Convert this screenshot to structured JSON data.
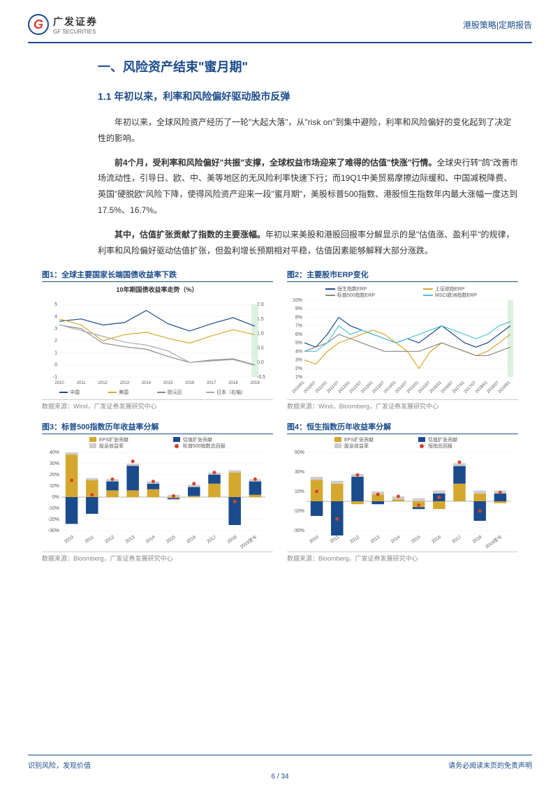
{
  "header": {
    "logo_cn": "广发证券",
    "logo_en": "GF SECURITIES",
    "logo_letter": "G",
    "right_text": "港股策略|定期报告"
  },
  "section": {
    "title": "一、风险资产结束\"蜜月期\"",
    "subsection": "1.1 年初以来，利率和风险偏好驱动股市反弹"
  },
  "paragraphs": {
    "p1": "年初以来，全球风险资产经历了一轮\"大起大落\"，从\"risk on\"到集中避险，利率和风险偏好的变化起到了决定性的影响。",
    "p2_bold": "前4个月，受利率和风险偏好\"共振\"支撑，全球权益市场迎来了难得的估值\"快涨\"行情。",
    "p2_rest": "全球央行转\"鸽\"改善市场流动性，引导日、欧、中、美等地区的无风险利率快速下行；而19Q1中美贸易摩擦边际缓和、中国减税降费、英国\"硬脱欧\"风险下降，使得风险资产迎来一段\"蜜月期\"，美股标普500指数、港股恒生指数年内最大涨幅一度达到17.5%、16.7%。",
    "p3_bold": "其中，估值扩张贡献了指数的主要涨幅。",
    "p3_rest": "年初以来美股和港股回报率分解显示的是\"估值涨、盈利平\"的规律，利率和风险偏好驱动估值扩张，但盈利增长预期相对平稳，估值因素能够解释大部分涨跌。"
  },
  "chart1": {
    "title": "图1：全球主要国家长端国债收益率下跌",
    "subtitle": "10年期国债收益率走势（%）",
    "source": "数据来源：Wind，广发证券发展研究中心",
    "legend": [
      "中国",
      "美国",
      "欧元区",
      "日本（右轴）"
    ],
    "colors": [
      "#1a4b8c",
      "#d4a82e",
      "#888888",
      "#aaaaaa"
    ],
    "x_labels": [
      "2010",
      "2011",
      "2012",
      "2013",
      "2014",
      "2015",
      "2016",
      "2017",
      "2018",
      "2019"
    ],
    "y_left": {
      "min": -1,
      "max": 5,
      "step": 1
    },
    "y_right": {
      "min": -0.5,
      "max": 2.0,
      "step": 0.5
    },
    "series": {
      "china": [
        3.6,
        3.8,
        3.3,
        3.5,
        4.5,
        3.4,
        2.8,
        3.4,
        3.9,
        3.2
      ],
      "us": [
        3.8,
        3.3,
        2.0,
        2.5,
        2.7,
        2.2,
        1.8,
        2.4,
        2.9,
        2.5
      ],
      "euro": [
        3.3,
        3.0,
        1.8,
        1.5,
        1.3,
        0.7,
        0.2,
        0.4,
        0.5,
        0.0
      ],
      "japan": [
        1.3,
        1.1,
        0.9,
        0.7,
        0.6,
        0.4,
        0.0,
        0.05,
        0.1,
        -0.1
      ]
    },
    "highlight_x": 9
  },
  "chart2": {
    "title": "图2：主要股市ERP变化",
    "source": "数据来源：Wind，Bloomberg，广发证券发展研究中心",
    "legend": [
      "恒生指数ERP",
      "上证综指ERP",
      "标普500指数ERP",
      "MSCI欧洲指数ERP"
    ],
    "colors": [
      "#1a4b8c",
      "#d4a82e",
      "#888888",
      "#4fc3d4"
    ],
    "x_labels": [
      "2010/01",
      "2010/07",
      "2011/01",
      "2011/07",
      "2012/01",
      "2012/07",
      "2013/01",
      "2013/07",
      "2014/01",
      "2014/07",
      "2015/01",
      "2015/07",
      "2016/01",
      "2016/07",
      "2017/01",
      "2017/07",
      "2018/01",
      "2018/07",
      "2019/01"
    ],
    "y": {
      "min": 1,
      "max": 10,
      "step": 1
    },
    "series": {
      "hsi": [
        5,
        4.5,
        6,
        8,
        7,
        6.5,
        6,
        5.5,
        5,
        5.5,
        5,
        6,
        7,
        6,
        5,
        4.5,
        5,
        6,
        7
      ],
      "sse": [
        3,
        2.5,
        4,
        5,
        5.5,
        6,
        6.5,
        6,
        5,
        4,
        2,
        4,
        5,
        4.5,
        4,
        3.5,
        4,
        5,
        6
      ],
      "sp500": [
        4,
        4.5,
        5,
        6,
        5.5,
        5,
        4.5,
        4,
        4,
        4,
        4,
        4.5,
        5,
        4.5,
        4,
        3.5,
        3.5,
        4,
        4.5
      ],
      "msci": [
        4,
        4,
        5,
        7,
        6,
        6.5,
        6,
        5.5,
        5,
        5.5,
        6,
        6.5,
        7,
        6.5,
        6,
        5.5,
        6,
        7,
        7.5
      ]
    },
    "highlight_x": 18
  },
  "chart3": {
    "title": "图3：标普500指数历年收益率分解",
    "source": "数据来源：Bloomberg，广发证券发展研究中心",
    "legend": [
      "EPS扩张贡献",
      "估值扩张贡献",
      "股息收益率",
      "标普500指数总回报"
    ],
    "colors": {
      "eps": "#d4a82e",
      "val": "#1a4b8c",
      "div": "#cccccc",
      "total": "#d4412e"
    },
    "x_labels": [
      "2010",
      "2011",
      "2012",
      "2013",
      "2014",
      "2015",
      "2016",
      "2017",
      "2018",
      "2019至今"
    ],
    "y": {
      "min": -30,
      "max": 40,
      "step": 10
    },
    "data": {
      "eps": [
        38,
        15,
        6,
        6,
        7,
        -1,
        1,
        12,
        22,
        2
      ],
      "val": [
        -24,
        -15,
        8,
        22,
        5,
        -1,
        8,
        8,
        -25,
        12
      ],
      "div": [
        2,
        2,
        2,
        2,
        2,
        2,
        2,
        2,
        2,
        2
      ],
      "total": [
        15,
        2,
        16,
        32,
        14,
        1,
        12,
        22,
        -4,
        16
      ]
    }
  },
  "chart4": {
    "title": "图4：恒生指数历年收益率分解",
    "source": "数据来源：Bloomberg，广发证券发展研究中心",
    "legend": [
      "EPS扩张贡献",
      "估值扩张贡献",
      "股息收益率",
      "恒指总回报"
    ],
    "colors": {
      "eps": "#d4a82e",
      "val": "#1a4b8c",
      "div": "#cccccc",
      "total": "#d4412e"
    },
    "x_labels": [
      "2010",
      "2011",
      "2012",
      "2013",
      "2014",
      "2015",
      "2016",
      "2017",
      "2018",
      "2019至今"
    ],
    "y": {
      "min": -30,
      "max": 50,
      "step": 20
    },
    "data": {
      "eps": [
        22,
        18,
        -3,
        7,
        2,
        -6,
        -8,
        18,
        8,
        -2
      ],
      "val": [
        -15,
        -35,
        25,
        -3,
        0,
        -2,
        8,
        18,
        -20,
        8
      ],
      "div": [
        3,
        3,
        3,
        3,
        3,
        3,
        3,
        3,
        3,
        3
      ],
      "total": [
        10,
        -18,
        27,
        7,
        5,
        -4,
        4,
        40,
        -10,
        9
      ]
    }
  },
  "footer": {
    "left": "识别风险，发现价值",
    "right": "请务必阅读末页的免责声明",
    "page": "6 / 34"
  }
}
